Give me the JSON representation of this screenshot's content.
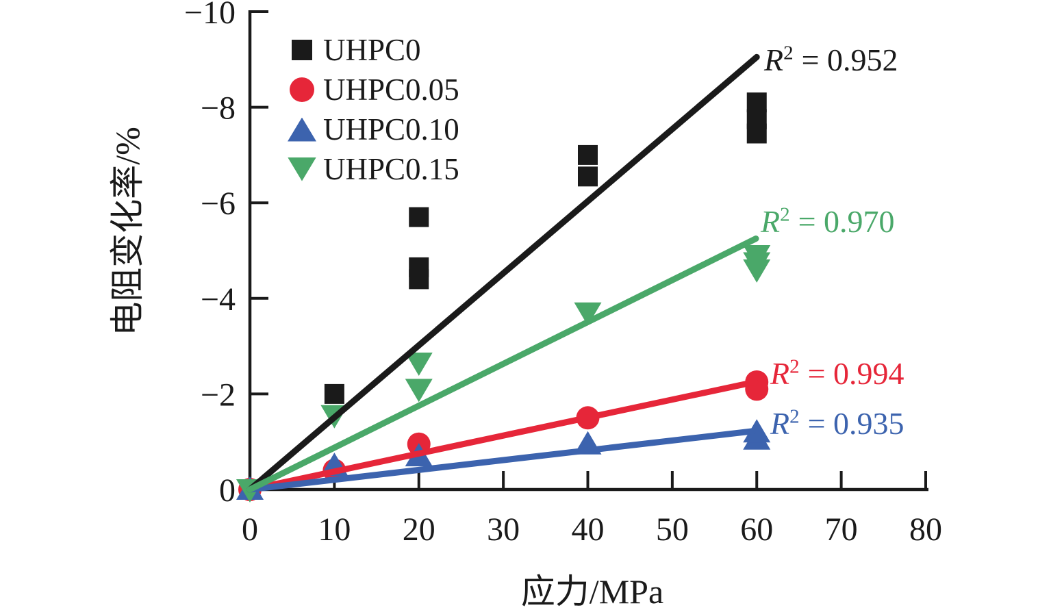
{
  "chart_data": {
    "type": "scatter",
    "title": "",
    "xlabel": "应力/MPa",
    "ylabel": "电阻变化率/%",
    "xlim": [
      0,
      80
    ],
    "ylim": [
      0,
      -10
    ],
    "x_tick_labels": [
      "0",
      "10",
      "20",
      "30",
      "40",
      "50",
      "60",
      "70",
      "80"
    ],
    "x_tick_values": [
      0,
      10,
      20,
      30,
      40,
      50,
      60,
      70,
      80
    ],
    "y_tick_labels": [
      "0",
      "−2",
      "−4",
      "−6",
      "−8",
      "−10"
    ],
    "y_tick_values": [
      0,
      -2,
      -4,
      -6,
      -8,
      -10
    ],
    "grid": false,
    "legend_position": "top-left-inside",
    "axis_color": "#1a1a1a",
    "series": [
      {
        "name": "UHPC0",
        "marker": "square",
        "color": "#1a1a1a",
        "points": [
          [
            0,
            0
          ],
          [
            10,
            -2.0
          ],
          [
            20,
            -4.4
          ],
          [
            20,
            -4.65
          ],
          [
            20,
            -5.7
          ],
          [
            40,
            -6.55
          ],
          [
            40,
            -7.0
          ],
          [
            60,
            -7.45
          ],
          [
            60,
            -7.75
          ],
          [
            60,
            -8.1
          ]
        ],
        "fit_line": {
          "x1": 0,
          "y1": 0,
          "x2": 60.0,
          "y2": -9.05
        },
        "r_squared": 0.952
      },
      {
        "name": "UHPC0.05",
        "marker": "circle",
        "color": "#e62639",
        "points": [
          [
            0,
            0
          ],
          [
            10,
            -0.4
          ],
          [
            20,
            -0.95
          ],
          [
            40,
            -1.5
          ],
          [
            60,
            -2.1
          ],
          [
            60,
            -2.25
          ]
        ],
        "fit_line": {
          "x1": 0,
          "y1": 0,
          "x2": 59.8,
          "y2": -2.25
        },
        "r_squared": 0.994
      },
      {
        "name": "UHPC0.10",
        "marker": "triangle-up",
        "color": "#3c63ae",
        "points": [
          [
            0,
            0
          ],
          [
            10,
            -0.5
          ],
          [
            20,
            -0.7
          ],
          [
            40,
            -0.95
          ],
          [
            60,
            -1.05
          ],
          [
            60,
            -1.2
          ]
        ],
        "fit_line": {
          "x1": 0,
          "y1": 0,
          "x2": 59.5,
          "y2": -1.22
        },
        "r_squared": 0.935
      },
      {
        "name": "UHPC0.15",
        "marker": "triangle-down",
        "color": "#4aa869",
        "points": [
          [
            0,
            0
          ],
          [
            10,
            -1.55
          ],
          [
            20,
            -2.1
          ],
          [
            20,
            -2.65
          ],
          [
            40,
            -3.7
          ],
          [
            60,
            -4.6
          ],
          [
            60,
            -4.75
          ],
          [
            60,
            -4.9
          ]
        ],
        "fit_line": {
          "x1": 0,
          "y1": 0,
          "x2": 59.9,
          "y2": -5.25
        },
        "r_squared": 0.97
      }
    ],
    "annotations": [
      {
        "series": "UHPC0",
        "r_symbol": "R",
        "exponent": "2",
        "value": "= 0.952",
        "color": "#1a1a1a"
      },
      {
        "series": "UHPC0.15",
        "r_symbol": "R",
        "exponent": "2",
        "value": "= 0.970",
        "color": "#4aa869"
      },
      {
        "series": "UHPC0.05",
        "r_symbol": "R",
        "exponent": "2",
        "value": "= 0.994",
        "color": "#e62639"
      },
      {
        "series": "UHPC0.10",
        "r_symbol": "R",
        "exponent": "2",
        "value": "= 0.935",
        "color": "#3c63ae"
      }
    ]
  }
}
